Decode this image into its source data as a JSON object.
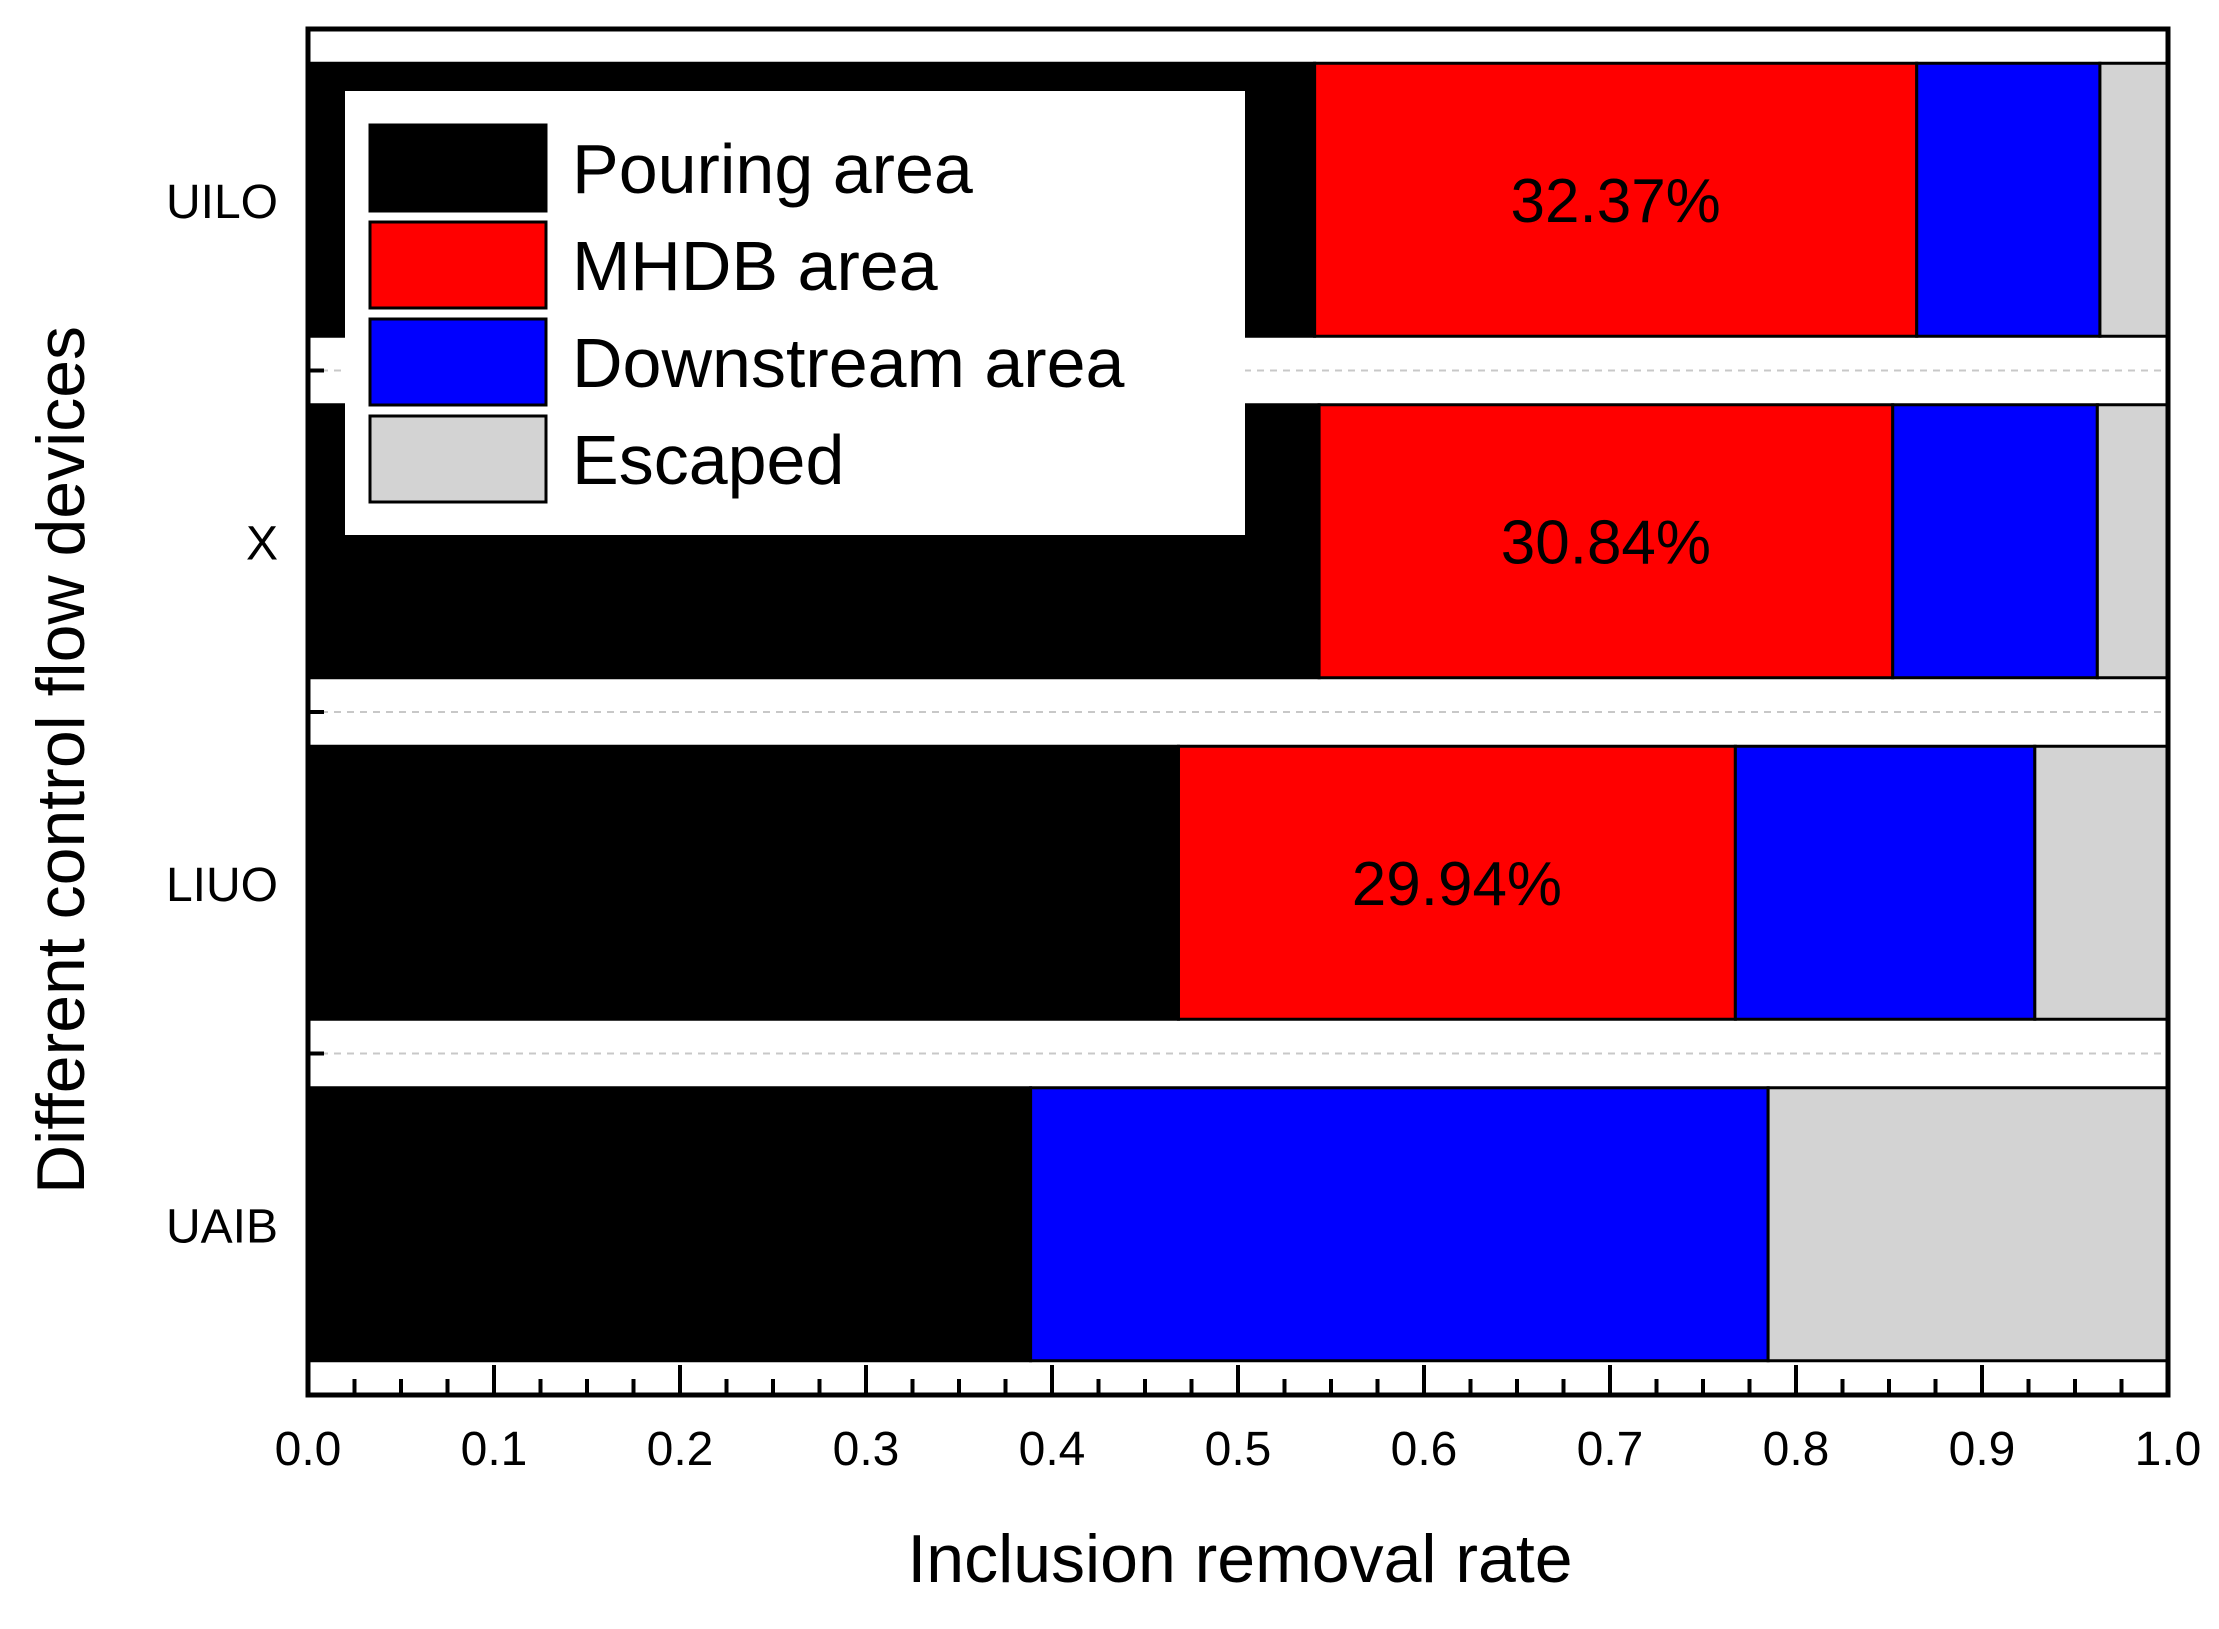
{
  "chart_data": {
    "type": "bar",
    "orientation": "horizontal",
    "stacked": true,
    "title": "",
    "xlabel": "Inclusion removal rate",
    "ylabel": "Different control flow devices",
    "xlim": [
      0.0,
      1.0
    ],
    "x_ticks": [
      "0.0",
      "0.1",
      "0.2",
      "0.3",
      "0.4",
      "0.5",
      "0.6",
      "0.7",
      "0.8",
      "0.9",
      "1.0"
    ],
    "x_tick_values": [
      0.0,
      0.1,
      0.2,
      0.3,
      0.4,
      0.5,
      0.6,
      0.7,
      0.8,
      0.9,
      1.0
    ],
    "categories": [
      "UILO",
      "X",
      "LIUO",
      "UAIB"
    ],
    "series": [
      {
        "name": "Pouring area",
        "color": "#000000",
        "values": [
          0.5412,
          0.5436,
          0.468,
          0.3885
        ]
      },
      {
        "name": "MHDB area",
        "color": "#ff0000",
        "values": [
          0.3237,
          0.3084,
          0.2994,
          0.0
        ]
      },
      {
        "name": "Downstream area",
        "color": "#0000ff",
        "values": [
          0.0985,
          0.11,
          0.161,
          0.3965
        ]
      },
      {
        "name": "Escaped",
        "color": "#d3d3d3",
        "values": [
          0.0366,
          0.038,
          0.0716,
          0.215
        ]
      }
    ],
    "annotations": [
      {
        "category": "UILO",
        "text": "32.37%"
      },
      {
        "category": "X",
        "text": "30.84%"
      },
      {
        "category": "LIUO",
        "text": "29.94%"
      }
    ],
    "legend": {
      "position": "top-left",
      "entries": [
        "Pouring area",
        "MHDB area",
        "Downstream area",
        "Escaped"
      ]
    },
    "grid": "minor dashed horizontal lines between categories"
  }
}
